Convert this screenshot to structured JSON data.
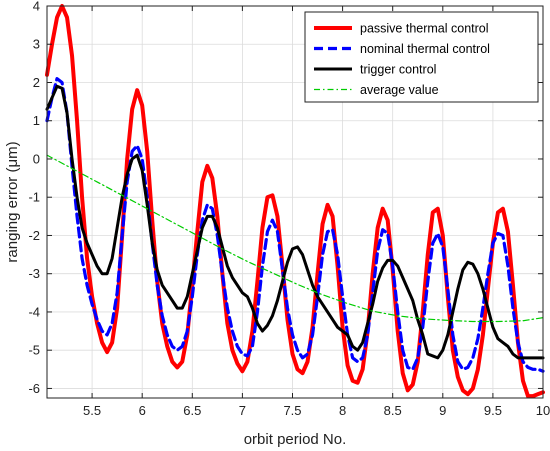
{
  "chart_data": {
    "type": "line",
    "xlabel": "orbit period No.",
    "ylabel": "ranging error (μm)",
    "xlim": [
      5.05,
      10.0
    ],
    "ylim": [
      -6.25,
      4.0
    ],
    "xticks": [
      5.5,
      6,
      6.5,
      7,
      7.5,
      8,
      8.5,
      9,
      9.5,
      10
    ],
    "yticks": [
      -6,
      -5,
      -4,
      -3,
      -2,
      -1,
      0,
      1,
      2,
      3,
      4
    ],
    "grid": true,
    "legend": "top-right",
    "series": [
      {
        "name": "passive thermal control",
        "color": "#ff0000",
        "style": "solid",
        "x": [
          5.05,
          5.1,
          5.15,
          5.2,
          5.25,
          5.3,
          5.35,
          5.4,
          5.45,
          5.5,
          5.55,
          5.6,
          5.65,
          5.7,
          5.75,
          5.8,
          5.85,
          5.9,
          5.95,
          6.0,
          6.05,
          6.1,
          6.15,
          6.2,
          6.25,
          6.3,
          6.35,
          6.4,
          6.45,
          6.5,
          6.55,
          6.6,
          6.65,
          6.7,
          6.75,
          6.8,
          6.85,
          6.9,
          6.95,
          7.0,
          7.05,
          7.1,
          7.15,
          7.2,
          7.25,
          7.3,
          7.35,
          7.4,
          7.45,
          7.5,
          7.55,
          7.6,
          7.65,
          7.7,
          7.75,
          7.8,
          7.85,
          7.9,
          7.95,
          8.0,
          8.05,
          8.1,
          8.15,
          8.2,
          8.25,
          8.3,
          8.35,
          8.4,
          8.45,
          8.5,
          8.55,
          8.6,
          8.65,
          8.7,
          8.75,
          8.8,
          8.85,
          8.9,
          8.95,
          9.0,
          9.05,
          9.1,
          9.15,
          9.2,
          9.25,
          9.3,
          9.35,
          9.4,
          9.45,
          9.5,
          9.55,
          9.6,
          9.65,
          9.7,
          9.75,
          9.8,
          9.85,
          9.9,
          9.95,
          10.0
        ],
        "y": [
          2.2,
          3.0,
          3.7,
          4.0,
          3.7,
          2.7,
          1.0,
          -1.0,
          -2.6,
          -3.6,
          -4.3,
          -4.8,
          -5.05,
          -4.8,
          -3.9,
          -2.0,
          0.0,
          1.3,
          1.8,
          1.4,
          0.2,
          -1.6,
          -3.2,
          -4.3,
          -4.9,
          -5.3,
          -5.45,
          -5.3,
          -4.6,
          -3.3,
          -1.9,
          -0.6,
          -0.18,
          -0.5,
          -1.5,
          -3.0,
          -4.3,
          -5.0,
          -5.35,
          -5.55,
          -5.3,
          -4.5,
          -3.2,
          -1.8,
          -1.0,
          -0.95,
          -1.5,
          -2.8,
          -4.2,
          -5.1,
          -5.5,
          -5.6,
          -5.3,
          -4.4,
          -3.0,
          -1.7,
          -1.2,
          -1.5,
          -2.8,
          -4.4,
          -5.4,
          -5.8,
          -5.85,
          -5.5,
          -4.5,
          -3.0,
          -1.8,
          -1.3,
          -1.6,
          -2.9,
          -4.5,
          -5.6,
          -6.05,
          -5.9,
          -5.3,
          -4.0,
          -2.5,
          -1.4,
          -1.3,
          -2.0,
          -3.6,
          -5.0,
          -5.7,
          -6.05,
          -6.15,
          -6.0,
          -5.5,
          -4.6,
          -3.4,
          -2.2,
          -1.4,
          -1.3,
          -1.9,
          -3.3,
          -4.8,
          -5.8,
          -6.2,
          -6.2,
          -6.15,
          -6.1
        ]
      },
      {
        "name": "nominal thermal control",
        "color": "#0000ff",
        "style": "dashed",
        "x": [
          5.05,
          5.1,
          5.15,
          5.2,
          5.25,
          5.3,
          5.35,
          5.4,
          5.45,
          5.5,
          5.55,
          5.6,
          5.65,
          5.7,
          5.75,
          5.8,
          5.85,
          5.9,
          5.95,
          6.0,
          6.05,
          6.1,
          6.15,
          6.2,
          6.25,
          6.3,
          6.35,
          6.4,
          6.45,
          6.5,
          6.55,
          6.6,
          6.65,
          6.7,
          6.75,
          6.8,
          6.85,
          6.9,
          6.95,
          7.0,
          7.05,
          7.1,
          7.15,
          7.2,
          7.25,
          7.3,
          7.35,
          7.4,
          7.45,
          7.5,
          7.55,
          7.6,
          7.65,
          7.7,
          7.75,
          7.8,
          7.85,
          7.9,
          7.95,
          8.0,
          8.05,
          8.1,
          8.15,
          8.2,
          8.25,
          8.3,
          8.35,
          8.4,
          8.45,
          8.5,
          8.55,
          8.6,
          8.65,
          8.7,
          8.75,
          8.8,
          8.85,
          8.9,
          8.95,
          9.0,
          9.05,
          9.1,
          9.15,
          9.2,
          9.25,
          9.3,
          9.35,
          9.4,
          9.45,
          9.5,
          9.55,
          9.6,
          9.65,
          9.7,
          9.75,
          9.8,
          9.85,
          9.9,
          9.95,
          10.0
        ],
        "y": [
          1.0,
          1.6,
          2.1,
          2.0,
          1.2,
          -0.2,
          -1.5,
          -2.6,
          -3.3,
          -3.8,
          -4.2,
          -4.5,
          -4.6,
          -4.3,
          -3.5,
          -2.0,
          -0.6,
          0.2,
          0.35,
          0.0,
          -1.0,
          -2.2,
          -3.3,
          -4.1,
          -4.6,
          -4.9,
          -5.0,
          -4.9,
          -4.5,
          -3.6,
          -2.5,
          -1.6,
          -1.2,
          -1.3,
          -2.0,
          -3.0,
          -3.9,
          -4.5,
          -4.9,
          -5.1,
          -5.15,
          -4.9,
          -4.0,
          -2.8,
          -1.9,
          -1.6,
          -1.9,
          -2.9,
          -3.9,
          -4.6,
          -5.0,
          -5.2,
          -5.1,
          -4.6,
          -3.6,
          -2.5,
          -1.9,
          -1.85,
          -2.5,
          -3.6,
          -4.6,
          -5.2,
          -5.3,
          -5.2,
          -4.6,
          -3.5,
          -2.4,
          -1.85,
          -1.95,
          -2.8,
          -4.0,
          -5.0,
          -5.45,
          -5.5,
          -5.2,
          -4.4,
          -3.2,
          -2.2,
          -1.95,
          -2.3,
          -3.4,
          -4.6,
          -5.3,
          -5.5,
          -5.45,
          -5.2,
          -4.7,
          -3.9,
          -3.0,
          -2.2,
          -1.95,
          -2.0,
          -2.8,
          -3.9,
          -4.8,
          -5.3,
          -5.45,
          -5.5,
          -5.5,
          -5.55
        ]
      },
      {
        "name": "trigger control",
        "color": "#000000",
        "style": "solid",
        "x": [
          5.05,
          5.1,
          5.15,
          5.2,
          5.25,
          5.3,
          5.35,
          5.4,
          5.45,
          5.5,
          5.55,
          5.6,
          5.65,
          5.7,
          5.75,
          5.8,
          5.85,
          5.9,
          5.95,
          6.0,
          6.05,
          6.1,
          6.15,
          6.2,
          6.25,
          6.3,
          6.35,
          6.4,
          6.45,
          6.5,
          6.55,
          6.6,
          6.65,
          6.7,
          6.75,
          6.8,
          6.85,
          6.9,
          6.95,
          7.0,
          7.05,
          7.1,
          7.15,
          7.2,
          7.25,
          7.3,
          7.35,
          7.4,
          7.45,
          7.5,
          7.55,
          7.6,
          7.65,
          7.7,
          7.75,
          7.8,
          7.85,
          7.9,
          7.95,
          8.0,
          8.05,
          8.1,
          8.15,
          8.2,
          8.25,
          8.3,
          8.35,
          8.4,
          8.45,
          8.5,
          8.55,
          8.6,
          8.65,
          8.7,
          8.75,
          8.8,
          8.85,
          8.9,
          8.95,
          9.0,
          9.05,
          9.1,
          9.15,
          9.2,
          9.25,
          9.3,
          9.35,
          9.4,
          9.45,
          9.5,
          9.55,
          9.6,
          9.65,
          9.7,
          9.75,
          9.8,
          9.85,
          9.9,
          9.95,
          10.0
        ],
        "y": [
          1.3,
          1.6,
          1.9,
          1.85,
          1.2,
          0.0,
          -1.0,
          -1.8,
          -2.2,
          -2.5,
          -2.8,
          -3.0,
          -3.0,
          -2.6,
          -1.8,
          -1.0,
          -0.4,
          0.0,
          0.1,
          -0.3,
          -1.2,
          -2.2,
          -2.9,
          -3.3,
          -3.5,
          -3.7,
          -3.9,
          -3.9,
          -3.6,
          -3.0,
          -2.4,
          -1.8,
          -1.5,
          -1.5,
          -1.8,
          -2.3,
          -2.8,
          -3.1,
          -3.3,
          -3.5,
          -3.6,
          -3.9,
          -4.3,
          -4.5,
          -4.35,
          -4.1,
          -3.7,
          -3.2,
          -2.7,
          -2.35,
          -2.3,
          -2.5,
          -2.9,
          -3.3,
          -3.6,
          -3.8,
          -4.0,
          -4.2,
          -4.4,
          -4.5,
          -4.6,
          -4.9,
          -5.0,
          -4.8,
          -4.3,
          -3.8,
          -3.2,
          -2.85,
          -2.65,
          -2.65,
          -2.8,
          -3.1,
          -3.4,
          -3.7,
          -4.2,
          -4.6,
          -5.1,
          -5.15,
          -5.2,
          -5.0,
          -4.6,
          -4.0,
          -3.4,
          -2.9,
          -2.7,
          -2.75,
          -3.0,
          -3.4,
          -3.9,
          -4.4,
          -4.7,
          -4.8,
          -4.9,
          -5.1,
          -5.2,
          -5.2,
          -5.2,
          -5.2,
          -5.2,
          -5.2
        ]
      },
      {
        "name": "average value",
        "color": "#00cc00",
        "style": "dashdot",
        "x": [
          5.05,
          5.3,
          5.55,
          5.8,
          6.05,
          6.3,
          6.55,
          6.8,
          7.05,
          7.3,
          7.55,
          7.8,
          8.05,
          8.3,
          8.55,
          8.8,
          9.05,
          9.3,
          9.55,
          9.8,
          10.0
        ],
        "y": [
          0.1,
          -0.25,
          -0.6,
          -0.95,
          -1.3,
          -1.65,
          -2.0,
          -2.35,
          -2.68,
          -2.98,
          -3.28,
          -3.55,
          -3.78,
          -3.98,
          -4.1,
          -4.18,
          -4.22,
          -4.25,
          -4.25,
          -4.23,
          -4.15
        ]
      }
    ]
  }
}
